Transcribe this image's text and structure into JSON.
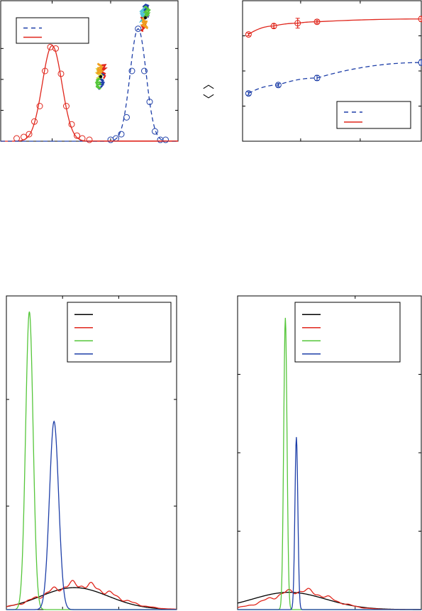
{
  "colors": {
    "red": "#e0261c",
    "blue": "#1e3fa8",
    "green": "#55c63a",
    "black": "#000000",
    "cyan": "#4fc4d8",
    "orange": "#f0a020",
    "yellow": "#d8d840"
  },
  "bracket_glyphs": {
    "up": "︿",
    "down": "﹀"
  },
  "chart_data": [
    {
      "id": "panel-a",
      "type": "line",
      "title": "",
      "xlabel": "",
      "ylabel": "",
      "xlim": [
        0,
        10
      ],
      "ylim": [
        0,
        1
      ],
      "legend": {
        "position": "top-left",
        "entries": [
          {
            "style": "dashed",
            "color": "blue",
            "label": ""
          },
          {
            "style": "solid",
            "color": "red",
            "label": ""
          }
        ]
      },
      "series": [
        {
          "color": "red",
          "style": "solid",
          "kind": "gaussian",
          "amplitude": 0.68,
          "center": 2.9,
          "width": 0.55,
          "points": [
            [
              0.9,
              0.02
            ],
            [
              1.3,
              0.03
            ],
            [
              1.6,
              0.05
            ],
            [
              1.9,
              0.14
            ],
            [
              2.2,
              0.25
            ],
            [
              2.5,
              0.5
            ],
            [
              2.8,
              0.67
            ],
            [
              3.1,
              0.66
            ],
            [
              3.4,
              0.48
            ],
            [
              3.7,
              0.25
            ],
            [
              4.0,
              0.12
            ],
            [
              4.3,
              0.04
            ],
            [
              4.6,
              0.02
            ],
            [
              5.0,
              0.01
            ]
          ]
        },
        {
          "color": "blue",
          "style": "dashed",
          "kind": "gaussian",
          "amplitude": 0.8,
          "center": 7.75,
          "width": 0.45,
          "points": [
            [
              6.2,
              0.01
            ],
            [
              6.5,
              0.02
            ],
            [
              6.8,
              0.05
            ],
            [
              7.1,
              0.17
            ],
            [
              7.4,
              0.5
            ],
            [
              7.75,
              0.8
            ],
            [
              8.1,
              0.5
            ],
            [
              8.4,
              0.28
            ],
            [
              8.7,
              0.07
            ],
            [
              9.0,
              0.01
            ],
            [
              9.3,
              0.01
            ]
          ]
        }
      ]
    },
    {
      "id": "panel-b",
      "type": "line",
      "title": "",
      "xlabel": "",
      "ylabel": "",
      "xlim": [
        0,
        12
      ],
      "ylim": [
        0,
        1
      ],
      "legend": {
        "position": "bottom-right",
        "entries": [
          {
            "style": "dashed",
            "color": "blue",
            "label": ""
          },
          {
            "style": "solid",
            "color": "red",
            "label": ""
          }
        ]
      },
      "series": [
        {
          "color": "red",
          "style": "solid",
          "points": [
            [
              0.4,
              0.76
            ],
            [
              2.1,
              0.82
            ],
            [
              3.7,
              0.84
            ],
            [
              5.0,
              0.85
            ],
            [
              12.0,
              0.87
            ]
          ],
          "errors": [
            0.01,
            0.015,
            0.035,
            0.012,
            0.018
          ]
        },
        {
          "color": "blue",
          "style": "dashed",
          "points": [
            [
              0.4,
              0.34
            ],
            [
              2.4,
              0.4
            ],
            [
              5.0,
              0.45
            ],
            [
              12.0,
              0.56
            ]
          ],
          "errors": [
            0.012,
            0.012,
            0.018,
            0.02
          ]
        }
      ]
    },
    {
      "id": "panel-c",
      "type": "line",
      "title": "",
      "xlabel": "",
      "ylabel": "",
      "xlim": [
        0,
        10
      ],
      "ylim": [
        0,
        1
      ],
      "legend": {
        "position": "top-right",
        "entries": [
          {
            "color": "black",
            "label": ""
          },
          {
            "color": "red",
            "label": ""
          },
          {
            "color": "green",
            "label": ""
          },
          {
            "color": "blue",
            "label": ""
          }
        ]
      },
      "series": [
        {
          "color": "black",
          "kind": "gaussian",
          "amplitude": 0.07,
          "center": 4.0,
          "width": 2.0
        },
        {
          "color": "red",
          "kind": "gaussian-bumpy",
          "amplitude": 0.08,
          "center": 4.2,
          "width": 2.0
        },
        {
          "color": "green",
          "kind": "gaussian",
          "amplitude": 0.95,
          "center": 1.35,
          "width": 0.22
        },
        {
          "color": "blue",
          "kind": "gaussian",
          "amplitude": 0.6,
          "center": 2.8,
          "width": 0.27
        }
      ]
    },
    {
      "id": "panel-d",
      "type": "line",
      "title": "",
      "xlabel": "",
      "ylabel": "",
      "xlim": [
        0,
        10
      ],
      "ylim": [
        0,
        1
      ],
      "legend": {
        "position": "top-right",
        "entries": [
          {
            "color": "black",
            "label": ""
          },
          {
            "color": "red",
            "label": ""
          },
          {
            "color": "green",
            "label": ""
          },
          {
            "color": "blue",
            "label": ""
          }
        ]
      },
      "series": [
        {
          "color": "black",
          "kind": "gaussian",
          "amplitude": 0.055,
          "center": 2.8,
          "width": 2.0
        },
        {
          "color": "red",
          "kind": "gaussian-bumpy",
          "amplitude": 0.06,
          "center": 3.4,
          "width": 1.6
        },
        {
          "color": "green",
          "kind": "gaussian",
          "amplitude": 0.93,
          "center": 2.6,
          "width": 0.09
        },
        {
          "color": "blue",
          "kind": "gaussian",
          "amplitude": 0.55,
          "center": 3.2,
          "width": 0.08
        }
      ]
    }
  ]
}
